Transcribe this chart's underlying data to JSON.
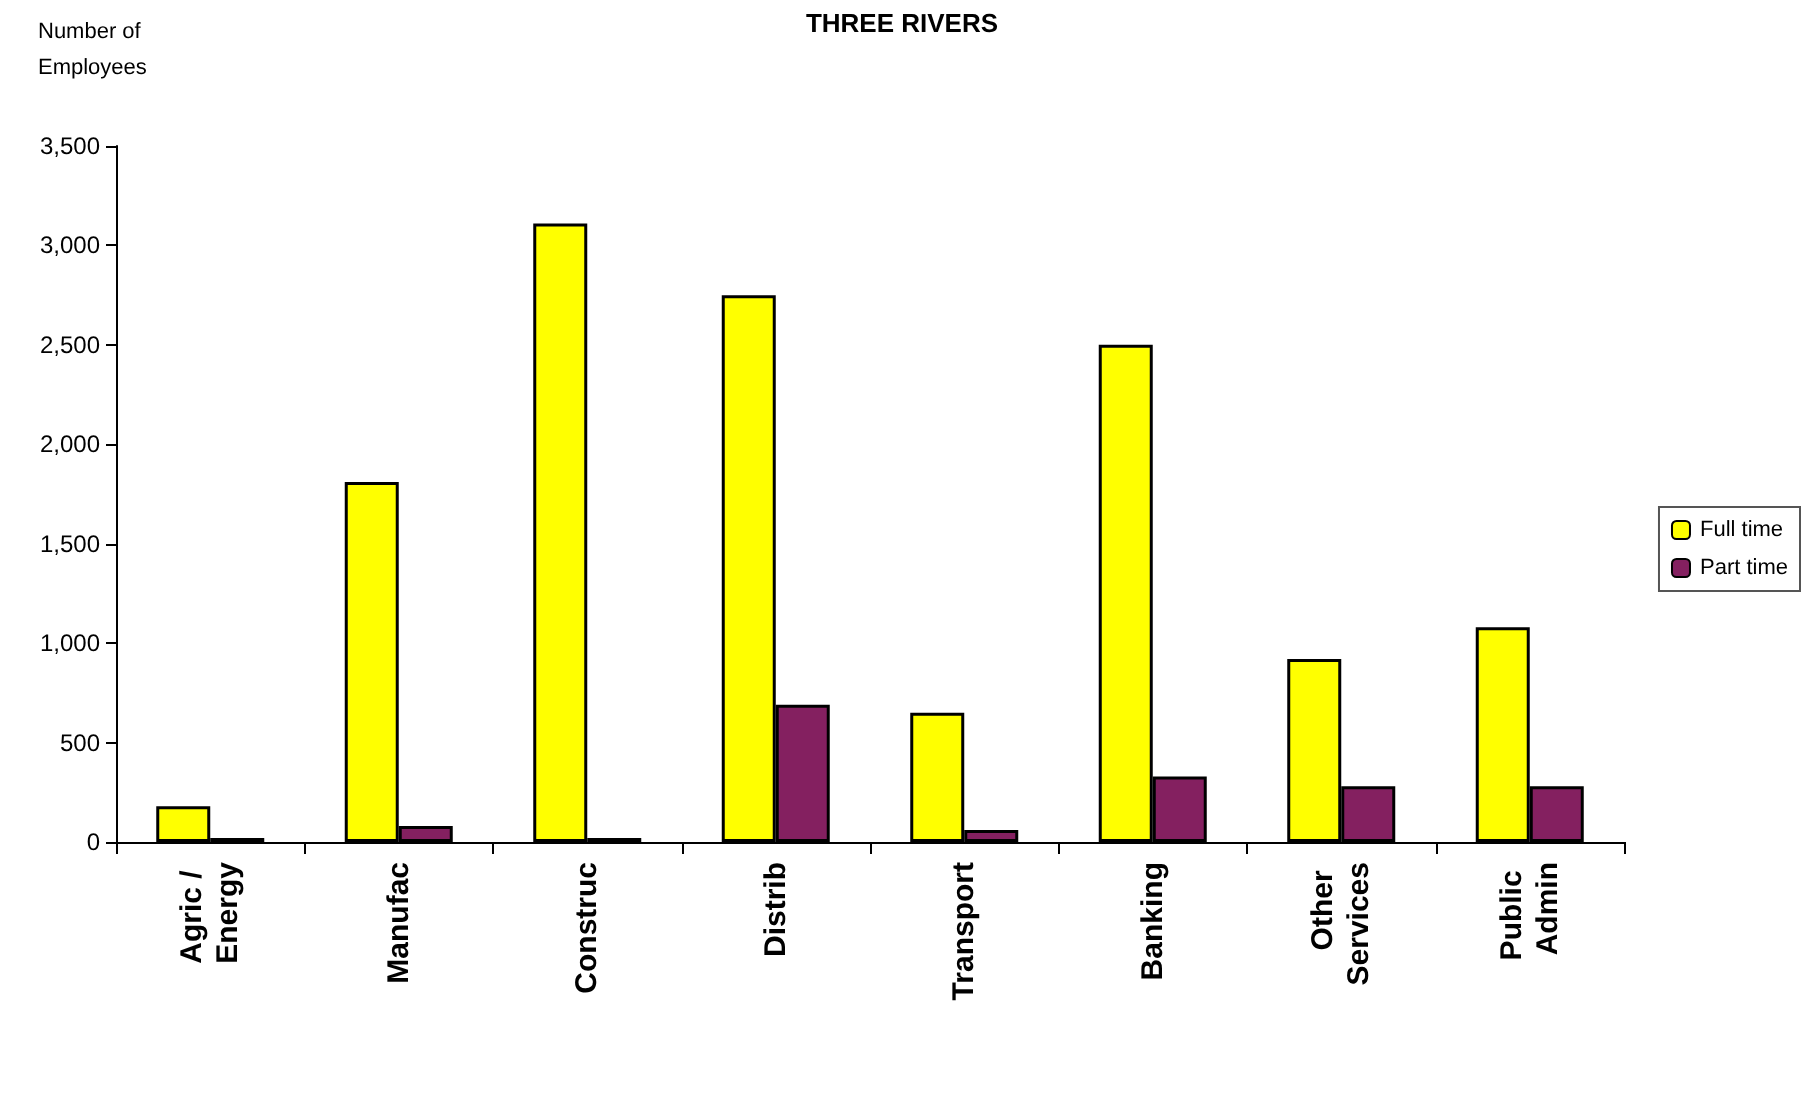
{
  "chart_data": {
    "type": "bar",
    "title": "THREE RIVERS",
    "ylabel": "Number of Employees",
    "categories": [
      "Agric / Energy",
      "Manufac",
      "Construc",
      "Distrib",
      "Transport",
      "Banking",
      "Other Services",
      "Public Admin"
    ],
    "series": [
      {
        "name": "Full time",
        "color": "#ffff00",
        "values": [
          180,
          1810,
          3110,
          2750,
          650,
          2500,
          920,
          1080
        ]
      },
      {
        "name": "Part time",
        "color": "#842060",
        "values": [
          20,
          80,
          20,
          690,
          60,
          330,
          280,
          280
        ]
      }
    ],
    "ylim": [
      0,
      3500
    ],
    "yticks": [
      0,
      500,
      {
        "value": 1000,
        "label": "1,000"
      },
      {
        "value": 1500,
        "label": "1,500"
      },
      {
        "value": 2000,
        "label": "2,000"
      },
      {
        "value": 2500,
        "label": "2,500"
      },
      {
        "value": 3000,
        "label": "3,000"
      },
      {
        "value": 3500,
        "label": "3,500"
      }
    ],
    "grid": false,
    "legend": "right"
  }
}
